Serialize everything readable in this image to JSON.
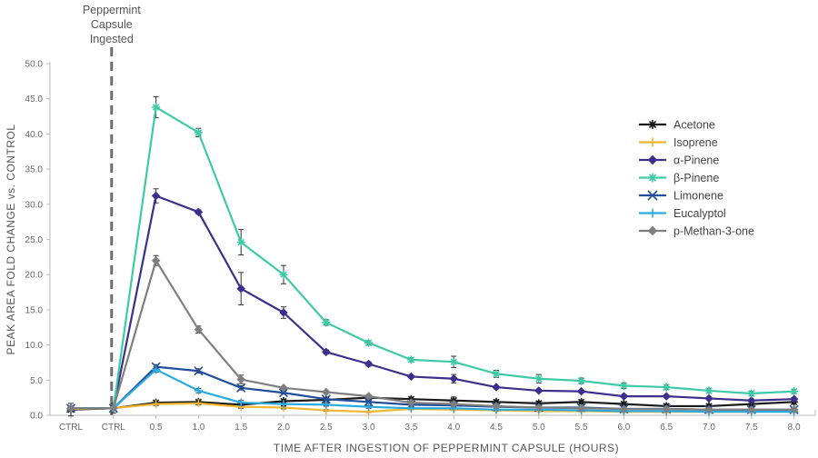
{
  "chart_data": {
    "type": "line",
    "title": "",
    "xlabel": "TIME AFTER INGESTION OF PEPPERMINT CAPSULE (HOURS)",
    "ylabel": "PEAK AREA FOLD CHANGE vs. CONTROL",
    "categories": [
      "CTRL",
      "CTRL",
      "0.5",
      "1.0",
      "1.5",
      "2.0",
      "2.5",
      "3.0",
      "3.5",
      "4.0",
      "4.5",
      "5.0",
      "5.5",
      "6.0",
      "6.5",
      "7.0",
      "7.5",
      "8.0"
    ],
    "ylim": [
      0,
      50
    ],
    "yticks": [
      "0.0",
      "5.0",
      "10.0",
      "15.0",
      "20.0",
      "25.0",
      "30.0",
      "35.0",
      "40.0",
      "45.0",
      "50.0"
    ],
    "grid": false,
    "legend_position": "right",
    "annotation": {
      "lines": [
        "Peppermint",
        "Capsule",
        "Ingested"
      ],
      "at_category_index": 1
    },
    "series": [
      {
        "name": "Acetone",
        "color": "#1a1a1a",
        "marker": "asterisk",
        "values": [
          0.8,
          1.0,
          1.8,
          1.9,
          1.5,
          2.0,
          2.2,
          2.5,
          2.3,
          2.1,
          1.9,
          1.7,
          1.9,
          1.6,
          1.3,
          1.3,
          1.6,
          1.9
        ],
        "errors": [
          0.9,
          0.7,
          0.3,
          0.3,
          0.3,
          0.3,
          0.3,
          0.3,
          0.3,
          0.5,
          0.3,
          0.3,
          0.3,
          0.3,
          0.3,
          0.3,
          0.3,
          0.3
        ]
      },
      {
        "name": "Isoprene",
        "color": "#f2b632",
        "marker": "plus",
        "values": [
          0.9,
          1.0,
          1.6,
          1.7,
          1.2,
          1.1,
          0.7,
          0.5,
          0.9,
          0.8,
          0.7,
          0.6,
          0.6,
          0.5,
          0.5,
          0.5,
          0.5,
          0.6
        ],
        "errors": [
          0.3,
          0.3,
          0.2,
          0.2,
          0.2,
          0.2,
          0.1,
          0.1,
          0.1,
          0.1,
          0.1,
          0.1,
          0.1,
          0.1,
          0.1,
          0.1,
          0.1,
          0.1
        ]
      },
      {
        "name": "α-Pinene",
        "color": "#3d2e8c",
        "marker": "diamond",
        "values": [
          1.0,
          1.0,
          31.2,
          28.9,
          18.0,
          14.6,
          9.0,
          7.3,
          5.5,
          5.2,
          4.0,
          3.5,
          3.4,
          2.7,
          2.7,
          2.4,
          2.1,
          2.3
        ],
        "errors": [
          0.2,
          0.2,
          1.0,
          0.3,
          2.3,
          0.8,
          0.3,
          0.3,
          0.2,
          0.6,
          0.2,
          0.2,
          0.2,
          0.2,
          0.2,
          0.2,
          0.2,
          0.2
        ]
      },
      {
        "name": "β-Pinene",
        "color": "#3ec9a7",
        "marker": "asterisk",
        "values": [
          1.0,
          1.0,
          43.8,
          40.2,
          24.6,
          20.0,
          13.2,
          10.3,
          7.9,
          7.6,
          5.9,
          5.2,
          4.9,
          4.2,
          4.0,
          3.5,
          3.1,
          3.4
        ],
        "errors": [
          0.2,
          0.2,
          1.5,
          0.6,
          1.8,
          1.3,
          0.4,
          0.3,
          0.3,
          0.8,
          0.5,
          0.6,
          0.4,
          0.4,
          0.3,
          0.3,
          0.3,
          0.3
        ]
      },
      {
        "name": "Limonene",
        "color": "#1f4e9c",
        "marker": "cross",
        "values": [
          1.0,
          1.0,
          6.9,
          6.3,
          3.9,
          3.2,
          2.3,
          1.9,
          1.5,
          1.4,
          1.2,
          1.1,
          1.1,
          0.9,
          0.9,
          0.8,
          0.8,
          0.8
        ],
        "errors": [
          0.2,
          0.2,
          0.3,
          0.3,
          0.3,
          0.2,
          0.2,
          0.2,
          0.1,
          0.1,
          0.1,
          0.1,
          0.1,
          0.1,
          0.1,
          0.1,
          0.1,
          0.1
        ]
      },
      {
        "name": "Eucalyptol",
        "color": "#29abe2",
        "marker": "plus",
        "values": [
          1.0,
          1.0,
          6.5,
          3.5,
          1.8,
          1.6,
          1.5,
          1.2,
          1.0,
          1.0,
          0.8,
          0.8,
          0.7,
          0.6,
          0.6,
          0.5,
          0.5,
          0.5
        ],
        "errors": [
          0.2,
          0.2,
          0.4,
          0.3,
          0.3,
          0.2,
          0.2,
          0.2,
          0.1,
          0.1,
          0.1,
          0.1,
          0.1,
          0.1,
          0.1,
          0.1,
          0.1,
          0.1
        ]
      },
      {
        "name": "p-Methan-3-one",
        "color": "#7f7f7f",
        "marker": "diamond",
        "values": [
          1.0,
          1.0,
          22.0,
          12.2,
          5.1,
          3.9,
          3.3,
          2.7,
          1.8,
          1.6,
          1.3,
          1.1,
          1.0,
          0.9,
          0.9,
          0.8,
          0.8,
          0.8
        ],
        "errors": [
          0.2,
          0.2,
          0.7,
          0.5,
          0.6,
          0.2,
          0.2,
          0.2,
          0.1,
          0.1,
          0.1,
          0.1,
          0.1,
          0.1,
          0.1,
          0.1,
          0.1,
          0.1
        ]
      }
    ]
  }
}
